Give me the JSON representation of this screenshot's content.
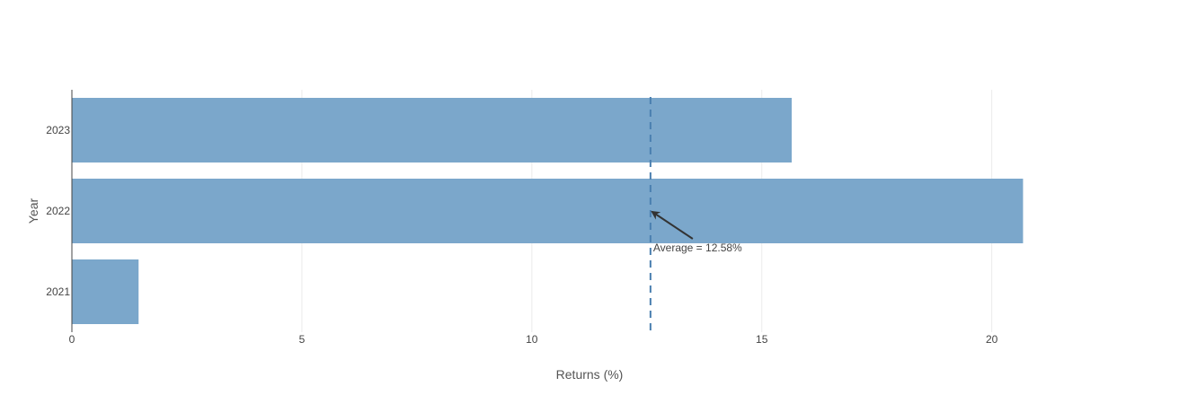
{
  "chart_data": {
    "type": "bar",
    "orientation": "horizontal",
    "categories": [
      "2021",
      "2022",
      "2023"
    ],
    "values": [
      1.45,
      20.68,
      15.65
    ],
    "xlabel": "Returns (%)",
    "ylabel": "Year",
    "xlim": [
      0,
      22
    ],
    "xticks": [
      0,
      5,
      10,
      15,
      20
    ],
    "grid": "vertical",
    "legend": "none",
    "bar_color": "#7BA7CB",
    "reference_line": {
      "x": 12.58,
      "style": "dashed",
      "color": "#4A7FB0"
    },
    "annotation": {
      "text": "Average = 12.58%",
      "points_to": {
        "x": 12.58,
        "category": "2022"
      },
      "arrow_color": "#333333"
    }
  }
}
